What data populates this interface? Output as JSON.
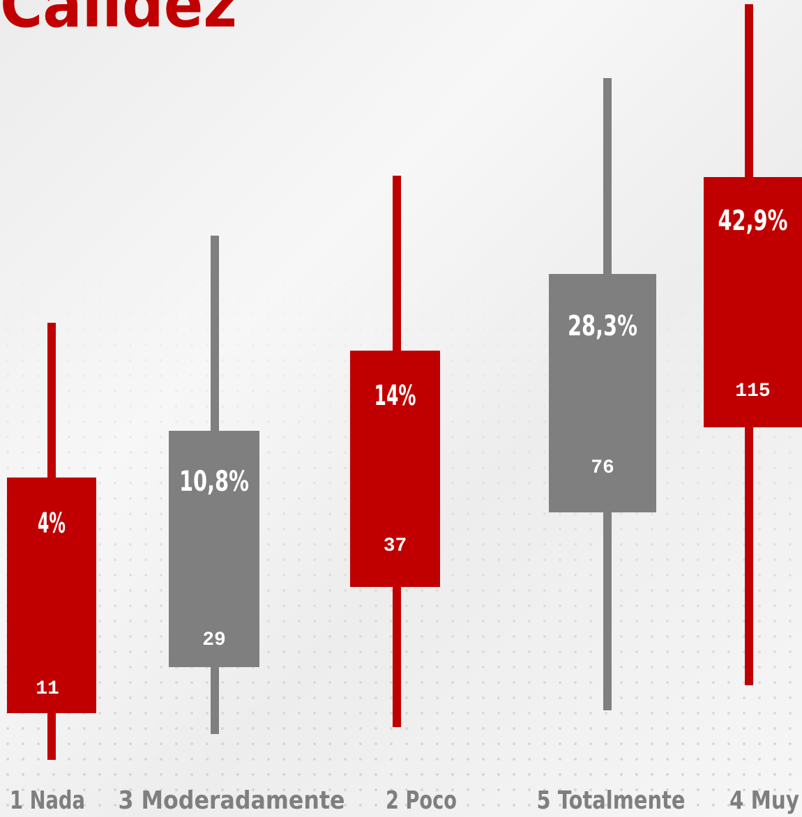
{
  "title": "Calidez",
  "items": [
    {
      "label": "1 Nada",
      "percent": "4%",
      "count": "11",
      "color": "#c00000"
    },
    {
      "label": "3 Moderadamente",
      "percent": "10,8%",
      "count": "29",
      "color": "#7f7f7f"
    },
    {
      "label": "2 Poco",
      "percent": "14%",
      "count": "37",
      "color": "#c00000"
    },
    {
      "label": "5 Totalmente",
      "percent": "28,3%",
      "count": "76",
      "color": "#7f7f7f"
    },
    {
      "label": "4  Muy",
      "percent": "42,9%",
      "count": "115",
      "color": "#c00000"
    }
  ]
}
